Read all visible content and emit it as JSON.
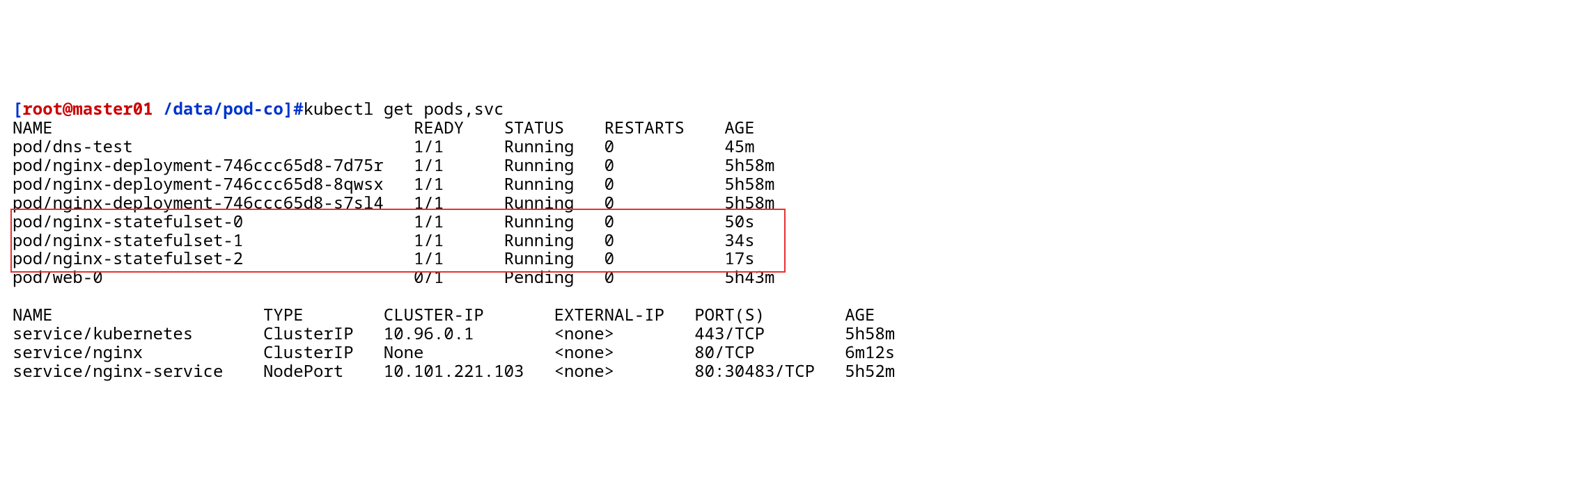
{
  "prompt": {
    "user": "root@master01",
    "path": "/data/pod-co",
    "command": "kubectl get pods,svc"
  },
  "pods": {
    "header": {
      "c0": "NAME",
      "c1": "READY",
      "c2": "STATUS",
      "c3": "RESTARTS",
      "c4": "AGE"
    },
    "rows": [
      {
        "name": "pod/dns-test",
        "ready": "1/1",
        "status": "Running",
        "restarts": "0",
        "age": "45m"
      },
      {
        "name": "pod/nginx-deployment-746ccc65d8-7d75r",
        "ready": "1/1",
        "status": "Running",
        "restarts": "0",
        "age": "5h58m"
      },
      {
        "name": "pod/nginx-deployment-746ccc65d8-8qwsx",
        "ready": "1/1",
        "status": "Running",
        "restarts": "0",
        "age": "5h58m"
      },
      {
        "name": "pod/nginx-deployment-746ccc65d8-s7sl4",
        "ready": "1/1",
        "status": "Running",
        "restarts": "0",
        "age": "5h58m"
      },
      {
        "name": "pod/nginx-statefulset-0",
        "ready": "1/1",
        "status": "Running",
        "restarts": "0",
        "age": "50s"
      },
      {
        "name": "pod/nginx-statefulset-1",
        "ready": "1/1",
        "status": "Running",
        "restarts": "0",
        "age": "34s"
      },
      {
        "name": "pod/nginx-statefulset-2",
        "ready": "1/1",
        "status": "Running",
        "restarts": "0",
        "age": "17s"
      },
      {
        "name": "pod/web-0",
        "ready": "0/1",
        "status": "Pending",
        "restarts": "0",
        "age": "5h43m"
      }
    ]
  },
  "svc": {
    "header": {
      "c0": "NAME",
      "c1": "TYPE",
      "c2": "CLUSTER-IP",
      "c3": "EXTERNAL-IP",
      "c4": "PORT(S)",
      "c5": "AGE"
    },
    "rows": [
      {
        "name": "service/kubernetes",
        "type": "ClusterIP",
        "cip": "10.96.0.1",
        "eip": "<none>",
        "ports": "443/TCP",
        "age": "5h58m"
      },
      {
        "name": "service/nginx",
        "type": "ClusterIP",
        "cip": "None",
        "eip": "<none>",
        "ports": "80/TCP",
        "age": "6m12s"
      },
      {
        "name": "service/nginx-service",
        "type": "NodePort",
        "cip": "10.101.221.103",
        "eip": "<none>",
        "ports": "80:30483/TCP",
        "age": "5h52m"
      }
    ]
  },
  "highlight": {
    "border_color": "#e83030",
    "rows": [
      4,
      5,
      6
    ]
  },
  "layout": {
    "pods_cols": [
      0,
      40,
      49,
      59,
      71
    ],
    "svc_cols": [
      0,
      25,
      37,
      54,
      68,
      83
    ]
  }
}
